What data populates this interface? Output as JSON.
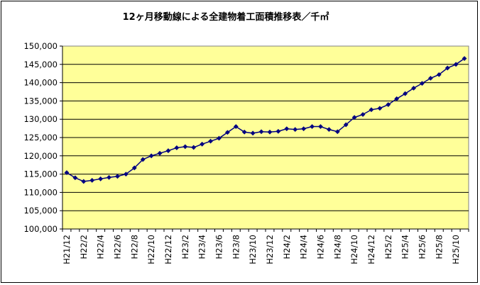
{
  "chart_data": {
    "type": "line",
    "title": "12ヶ月移動線による全建物着工面積推移表／千㎡",
    "xlabel": "",
    "ylabel": "",
    "ylim": [
      100000,
      150000
    ],
    "y_ticks": [
      100000,
      105000,
      110000,
      115000,
      120000,
      125000,
      130000,
      135000,
      140000,
      145000,
      150000
    ],
    "y_tick_labels": [
      "100,000",
      "105,000",
      "110,000",
      "115,000",
      "120,000",
      "125,000",
      "130,000",
      "135,000",
      "140,000",
      "145,000",
      "150,000"
    ],
    "grid": "horizontal",
    "legend": "none",
    "x": [
      "H21/12",
      "H22/1",
      "H22/2",
      "H22/3",
      "H22/4",
      "H22/5",
      "H22/6",
      "H22/7",
      "H22/8",
      "H22/9",
      "H22/10",
      "H22/11",
      "H22/12",
      "H23/1",
      "H23/2",
      "H23/3",
      "H23/4",
      "H23/5",
      "H23/6",
      "H23/7",
      "H23/8",
      "H23/9",
      "H23/10",
      "H23/11",
      "H23/12",
      "H24/1",
      "H24/2",
      "H24/3",
      "H24/4",
      "H24/5",
      "H24/6",
      "H24/7",
      "H24/8",
      "H24/9",
      "H24/10",
      "H24/11",
      "H24/12",
      "H25/1",
      "H25/2",
      "H25/3",
      "H25/4",
      "H25/5",
      "H25/6",
      "H25/7",
      "H25/8",
      "H25/9",
      "H25/10",
      "H25/11"
    ],
    "x_tick_labels": [
      "H21/12",
      "H22/2",
      "H22/4",
      "H22/6",
      "H22/8",
      "H22/10",
      "H22/12",
      "H23/2",
      "H23/4",
      "H23/6",
      "H23/8",
      "H23/10",
      "H23/12",
      "H24/2",
      "H24/4",
      "H24/6",
      "H24/8",
      "H24/10",
      "H24/12",
      "H25/2",
      "H25/4",
      "H25/6",
      "H25/8",
      "H25/10"
    ],
    "series": [
      {
        "values": [
          115400,
          114000,
          113000,
          113300,
          113700,
          114100,
          114400,
          115000,
          116700,
          119000,
          120000,
          120700,
          121400,
          122200,
          122500,
          122300,
          123200,
          124000,
          124800,
          126400,
          128000,
          126500,
          126200,
          126600,
          126500,
          126700,
          127400,
          127200,
          127400,
          128000,
          128000,
          127200,
          126600,
          128500,
          130500,
          131300,
          132600,
          133000,
          134000,
          135600,
          137000,
          138500,
          139800,
          141200,
          142200,
          144000,
          145000,
          146600
        ],
        "color": "#000080"
      }
    ],
    "colors": {
      "plot_bg": "#FFFF99",
      "line": "#000080",
      "grid": "#000000"
    }
  }
}
